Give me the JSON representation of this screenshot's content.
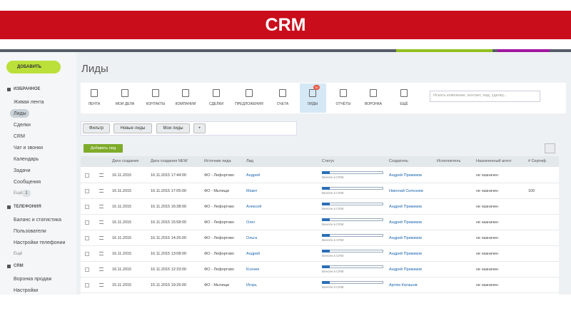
{
  "banner": {
    "title": "CRM"
  },
  "sidebar": {
    "add_button": "ДОБАВИТЬ",
    "sections": [
      {
        "title": "ИЗБРАННОЕ",
        "items": [
          "Живая лента",
          "Лиды",
          "Сделки",
          "CRM",
          "Чат и звонки",
          "Календарь",
          "Задачи",
          "Сообщения"
        ],
        "more": "Ещё",
        "more_count": "1"
      },
      {
        "title": "ТЕЛЕФОНИЯ",
        "items": [
          "Баланс и статистика",
          "Пользователи",
          "Настройки телефонии"
        ],
        "more": "Ещё"
      },
      {
        "title": "CRM",
        "items": [
          "Воронка продаж",
          "Настройки"
        ]
      }
    ]
  },
  "page": {
    "title": "Лиды",
    "toolbar": [
      "ЛЕНТА",
      "МОИ ДЕЛА",
      "КОНТАКТЫ",
      "КОМПАНИИ",
      "СДЕЛКИ",
      "ПРЕДЛОЖЕНИЯ",
      "СЧЕТА",
      "ЛИДЫ",
      "ОТЧЁТЫ",
      "ВОРОНКА",
      "ЕЩЁ"
    ],
    "toolbar_badge": "30",
    "search_placeholder": "Искать компанию, контакт, лид, сделку...",
    "filters": [
      "Фильтр",
      "Новые лиды",
      "Мои лиды",
      "+"
    ],
    "add_lead": "Добавить лид"
  },
  "table": {
    "columns": [
      "Дата создания",
      "Дата создания NEW",
      "Источник лида",
      "Лид",
      "Статус",
      "Создатель",
      "Исполнитель",
      "Назначенный агент",
      "# Сертиф."
    ],
    "rows": [
      {
        "date": "16.11.2015",
        "created": "16.11.2015 17:44:00",
        "source": "ФО - Лефортово",
        "lead": "Андрей",
        "status": "Внесён в CRM",
        "creator": "Андрей Прикимов",
        "agent": "не назначен"
      },
      {
        "date": "16.11.2015",
        "created": "16.11.2015 17:05:00",
        "source": "ФО - Мытищи",
        "lead": "Макит",
        "status": "Внесён в CRM",
        "creator": "Николай Селезнев",
        "agent": "не назначен",
        "cert": "100"
      },
      {
        "date": "16.11.2015",
        "created": "16.11.2015 16:38:00",
        "source": "ФО - Лефортово",
        "lead": "Алексей",
        "status": "Внесён в CRM",
        "creator": "Андрей Прикимов",
        "agent": "не назначен"
      },
      {
        "date": "16.11.2015",
        "created": "16.11.2015 15:58:00",
        "source": "ФО - Лефортово",
        "lead": "Олег",
        "status": "Внесён в CRM",
        "creator": "Андрей Прикимов",
        "agent": "не назначен"
      },
      {
        "date": "16.11.2015",
        "created": "16.11.2015 14:26:00",
        "source": "ФО - Лефортово",
        "lead": "Ольга",
        "status": "Внесён в CRM",
        "creator": "Андрей Прикимов",
        "agent": "не назначен"
      },
      {
        "date": "16.11.2015",
        "created": "16.11.2015 13:08:00",
        "source": "ФО - Лефортово",
        "lead": "Андрей",
        "status": "Внесён в CRM",
        "creator": "Андрей Прикимов",
        "agent": "не назначен"
      },
      {
        "date": "16.11.2015",
        "created": "16.11.2015 12:33:00",
        "source": "ФО - Лефортово",
        "lead": "Ксения",
        "status": "Внесён в CRM",
        "creator": "Андрей Прикимов",
        "agent": "не назначен"
      },
      {
        "date": "15.11.2015",
        "created": "15.11.2015 19:26:00",
        "source": "ФО - Мытищи",
        "lead": "Игорь",
        "status": "Внесён в CRM",
        "creator": "Артём Каташов",
        "agent": "не назначен"
      }
    ]
  }
}
